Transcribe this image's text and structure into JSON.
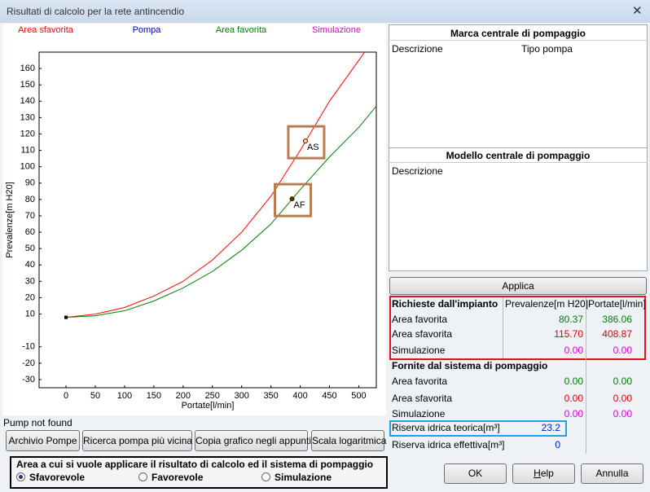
{
  "window": {
    "title": "Risultati di calcolo per la rete antincendio"
  },
  "chart_data": {
    "type": "line",
    "x_label": "Portate[l/min]",
    "y_label": "Prevalenze[m H20]",
    "xlim": [
      -46,
      530
    ],
    "ylim": [
      -35,
      170
    ],
    "xticks": [
      0,
      50,
      100,
      150,
      200,
      250,
      300,
      350,
      400,
      450,
      500
    ],
    "yticks": [
      160,
      150,
      140,
      130,
      120,
      110,
      100,
      90,
      80,
      70,
      60,
      50,
      40,
      30,
      20,
      10,
      -10,
      -20,
      -30
    ],
    "grid": false,
    "series": [
      {
        "name": "Area sfavorita",
        "color": "#ff0000",
        "x": [
          0,
          50,
          100,
          150,
          200,
          250,
          300,
          350,
          400,
          450,
          500,
          510
        ],
        "values": [
          8,
          10,
          14,
          21,
          30,
          43,
          60,
          82,
          110,
          140,
          165,
          170
        ]
      },
      {
        "name": "Pompa",
        "color": "#0000c0",
        "x": [],
        "values": []
      },
      {
        "name": "Area favorita",
        "color": "#008000",
        "x": [
          0,
          50,
          100,
          150,
          200,
          250,
          300,
          350,
          400,
          450,
          500,
          530
        ],
        "values": [
          8,
          9,
          12,
          18,
          26,
          36,
          49,
          65,
          86,
          106,
          124,
          137
        ]
      },
      {
        "name": "Simulazione",
        "color": "#e000e0",
        "x": [],
        "values": []
      }
    ],
    "points": [
      {
        "label": "AS",
        "x": 408.87,
        "y": 115.7,
        "color": "#ffe080"
      },
      {
        "label": "AF",
        "x": 386.06,
        "y": 80.37,
        "color": "#006000"
      }
    ]
  },
  "brand": {
    "title": "Marca centrale di pompaggio",
    "columns": [
      "Descrizione",
      "Tipo pompa"
    ]
  },
  "model": {
    "title": "Modello centrale di pompaggio",
    "columns": [
      "Descrizione"
    ]
  },
  "apply": "Applica",
  "requirements": {
    "headers": [
      "Richieste dall'impianto",
      "Prevalenze[m H20]",
      "Portate[l/min]"
    ],
    "rows": [
      [
        "Area favorita",
        "80.37",
        "386.06"
      ],
      [
        "Area sfavorita",
        "115.70",
        "408.87"
      ],
      [
        "Simulazione",
        "0.00",
        "0.00"
      ]
    ]
  },
  "supplied": {
    "title": "Fornite dal sistema di pompaggio",
    "rows": [
      [
        "Area favorita",
        "0.00",
        "0.00"
      ],
      [
        "Area sfavorita",
        "0.00",
        "0.00"
      ],
      [
        "Simulazione",
        "0.00",
        "0.00"
      ]
    ]
  },
  "reserve": [
    [
      "Riserva idrica teorica[m³]",
      "23.2"
    ],
    [
      "Riserva idrica effettiva[m³]",
      "0"
    ]
  ],
  "status": "Pump not found",
  "tools": [
    "Archivio Pompe",
    "Ricerca pompa più vicina",
    "Copia grafico negli appunti",
    "Scala logaritmica"
  ],
  "target": {
    "title": "Area a cui si vuole applicare il risultato di calcolo ed il sistema di pompaggio",
    "options": [
      "Sfavorevole",
      "Favorevole",
      "Simulazione"
    ],
    "selected": 0
  },
  "dialog_buttons": [
    "OK",
    "Help",
    "Annulla"
  ]
}
